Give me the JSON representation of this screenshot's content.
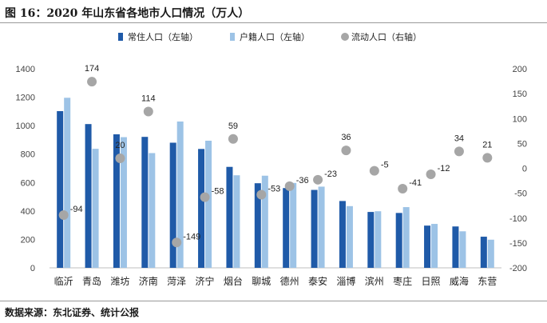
{
  "title": "图 16：2020 年山东省各地市人口情况（万人）",
  "source": "数据来源：东北证券、统计公报",
  "colors": {
    "resident": "#1f5aa8",
    "registered": "#9dc3e6",
    "floating": "#a6a6a6"
  },
  "chart_data": {
    "type": "bar",
    "categories": [
      "临沂",
      "青岛",
      "潍坊",
      "济南",
      "菏泽",
      "济宁",
      "烟台",
      "聊城",
      "德州",
      "泰安",
      "淄博",
      "滨州",
      "枣庄",
      "日照",
      "威海",
      "东营"
    ],
    "series": [
      {
        "name": "常住人口（左轴）",
        "axis": "left",
        "type": "bar",
        "values": [
          1102,
          1011,
          939,
          921,
          880,
          836,
          710,
          595,
          561,
          548,
          470,
          393,
          386,
          297,
          291,
          219
        ]
      },
      {
        "name": "户籍人口（左轴）",
        "axis": "left",
        "type": "bar",
        "values": [
          1196,
          837,
          919,
          807,
          1029,
          894,
          651,
          648,
          597,
          571,
          434,
          398,
          427,
          309,
          257,
          198
        ]
      },
      {
        "name": "流动人口（右轴）",
        "axis": "right",
        "type": "scatter",
        "values": [
          -94,
          174,
          20,
          114,
          -149,
          -58,
          59,
          -53,
          -36,
          -23,
          36,
          -5,
          -41,
          -12,
          34,
          21
        ]
      }
    ],
    "left_axis": {
      "min": 0,
      "max": 1400,
      "ticks": [
        "0",
        "200",
        "400",
        "600",
        "800",
        "1000",
        "1200",
        "1400"
      ]
    },
    "right_axis": {
      "min": -200,
      "max": 200,
      "ticks": [
        "-200",
        "-150",
        "-100",
        "-50",
        "0",
        "50",
        "100",
        "150",
        "200"
      ]
    },
    "legend_position": "top"
  }
}
